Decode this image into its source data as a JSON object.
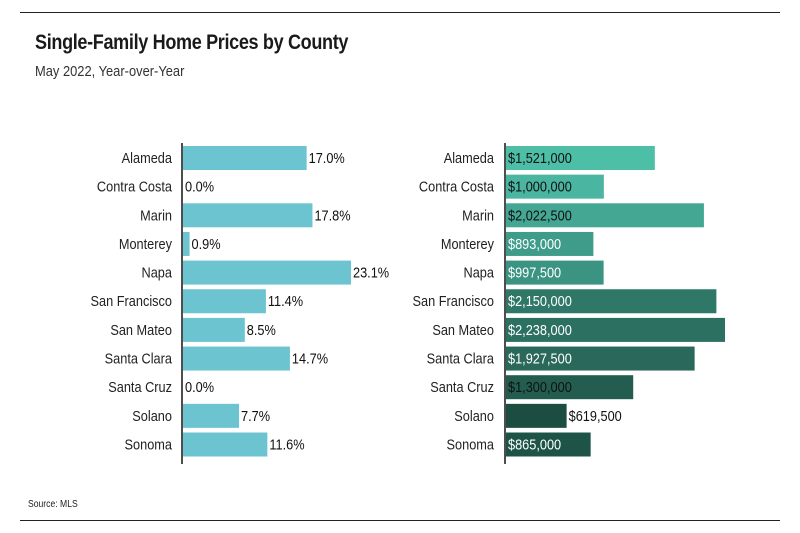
{
  "header": {
    "title": "Single-Family Home Prices by County",
    "subtitle": "May 2022, Year-over-Year"
  },
  "footer": {
    "source": "Source:  MLS"
  },
  "chart_data": [
    {
      "type": "bar",
      "orientation": "horizontal",
      "title": "",
      "categories": [
        "Alameda",
        "Contra Costa",
        "Marin",
        "Monterey",
        "Napa",
        "San Francisco",
        "San Mateo",
        "Santa Clara",
        "Santa Cruz",
        "Solano",
        "Sonoma"
      ],
      "values": [
        17.0,
        0.0,
        17.8,
        0.9,
        23.1,
        11.4,
        8.5,
        14.7,
        0.0,
        7.7,
        11.6
      ],
      "labels": [
        "17.0%",
        "0.0%",
        "17.8%",
        "0.9%",
        "23.1%",
        "11.4%",
        "8.5%",
        "14.7%",
        "0.0%",
        "7.7%",
        "11.6%"
      ],
      "xlim": [
        0,
        23.1
      ],
      "color": "#6bc4cf"
    },
    {
      "type": "bar",
      "orientation": "horizontal",
      "title": "",
      "categories": [
        "Alameda",
        "Contra Costa",
        "Marin",
        "Monterey",
        "Napa",
        "San Francisco",
        "San Mateo",
        "Santa Clara",
        "Santa Cruz",
        "Solano",
        "Sonoma"
      ],
      "values": [
        1521000,
        1000000,
        2022500,
        893000,
        997500,
        2150000,
        2238000,
        1927500,
        1300000,
        619500,
        865000
      ],
      "labels": [
        "$1,521,000",
        "$1,000,000",
        "$2,022,500",
        "$893,000",
        "$997,500",
        "$2,150,000",
        "$2,238,000",
        "$1,927,500",
        "$1,300,000",
        "$619,500",
        "$865,000"
      ],
      "xlim": [
        0,
        2238000
      ],
      "colors": [
        "#4dbfa7",
        "#4ab5a1",
        "#44a793",
        "#3f9c8a",
        "#3b9382",
        "#2f7868",
        "#2b7061",
        "#29685a",
        "#235d50",
        "#1c4d41",
        "#1e5447"
      ]
    }
  ]
}
